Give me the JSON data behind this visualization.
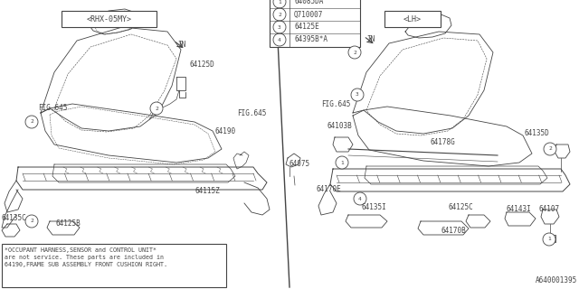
{
  "bg_color": "#ffffff",
  "line_color": "#444444",
  "fig_id": "A640001395",
  "legend_items": [
    {
      "num": "1",
      "code": "64085DA"
    },
    {
      "num": "2",
      "code": "Q710007"
    },
    {
      "num": "3",
      "code": "64125E"
    },
    {
      "num": "4",
      "code": "64395B*A"
    }
  ],
  "rh_label": "<RHX-05MY>",
  "lh_label": "<LH>",
  "note_text": "*OCCUPANT HARNESS,SENSOR and CONTROL UNIT*\nare not service. These parts are included in\n64190,FRAME SUB ASSEMBLY FRONT CUSHION RIGHT."
}
